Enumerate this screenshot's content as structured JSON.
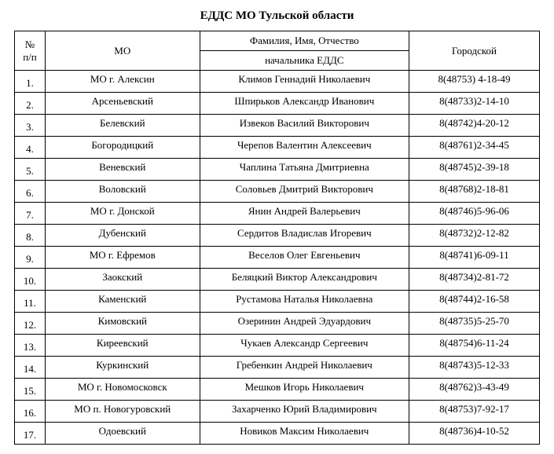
{
  "title": "ЕДДС МО Тульской области",
  "headers": {
    "num_line1": "№",
    "num_line2": "п/п",
    "mo": "МО",
    "fio_line1": "Фамилия, Имя, Отчество",
    "fio_line2": "начальника ЕДДС",
    "city": "Городской"
  },
  "rows": [
    {
      "num": "1.",
      "mo": "МО г. Алексин",
      "fio": "Климов Геннадий Николаевич",
      "city": "8(48753) 4-18-49"
    },
    {
      "num": "2.",
      "mo": "Арсеньевский",
      "fio": "Шпирьков Александр Иванович",
      "city": "8(48733)2-14-10"
    },
    {
      "num": "3.",
      "mo": "Белевский",
      "fio": "Извеков Василий Викторович",
      "city": "8(48742)4-20-12"
    },
    {
      "num": "4.",
      "mo": "Богородицкий",
      "fio": "Черепов Валентин Алексеевич",
      "city": "8(48761)2-34-45"
    },
    {
      "num": "5.",
      "mo": "Веневский",
      "fio": "Чаплина Татьяна Дмитриевна",
      "city": "8(48745)2-39-18"
    },
    {
      "num": "6.",
      "mo": "Воловский",
      "fio": "Соловьев Дмитрий Викторович",
      "city": "8(48768)2-18-81"
    },
    {
      "num": "7.",
      "mo": "МО г. Донской",
      "fio": "Янин Андрей Валерьевич",
      "city": "8(48746)5-96-06"
    },
    {
      "num": "8.",
      "mo": "Дубенский",
      "fio": "Сердитов Владислав Игоревич",
      "city": "8(48732)2-12-82"
    },
    {
      "num": "9.",
      "mo": "МО г. Ефремов",
      "fio": "Веселов Олег Евгеньевич",
      "city": "8(48741)6-09-11"
    },
    {
      "num": "10.",
      "mo": "Заокский",
      "fio": "Беляцкий Виктор Александрович",
      "city": "8(48734)2-81-72"
    },
    {
      "num": "11.",
      "mo": "Каменский",
      "fio": "Рустамова Наталья Николаевна",
      "city": "8(48744)2-16-58"
    },
    {
      "num": "12.",
      "mo": "Кимовский",
      "fio": "Озеринин Андрей Эдуардович",
      "city": "8(48735)5-25-70"
    },
    {
      "num": "13.",
      "mo": "Киреевский",
      "fio": "Чукаев Александр Сергеевич",
      "city": "8(48754)6-11-24"
    },
    {
      "num": "14.",
      "mo": "Куркинский",
      "fio": "Гребенкин Андрей Николаевич",
      "city": "8(48743)5-12-33"
    },
    {
      "num": "15.",
      "mo": "МО г. Новомосковск",
      "fio": "Мешков Игорь Николаевич",
      "city": "8(48762)3-43-49"
    },
    {
      "num": "16.",
      "mo": "МО п. Новогуровский",
      "fio": "Захарченко Юрий Владимирович",
      "city": "8(48753)7-92-17"
    },
    {
      "num": "17.",
      "mo": "Одоевский",
      "fio": "Новиков Максим Николаевич",
      "city": "8(48736)4-10-52"
    }
  ]
}
